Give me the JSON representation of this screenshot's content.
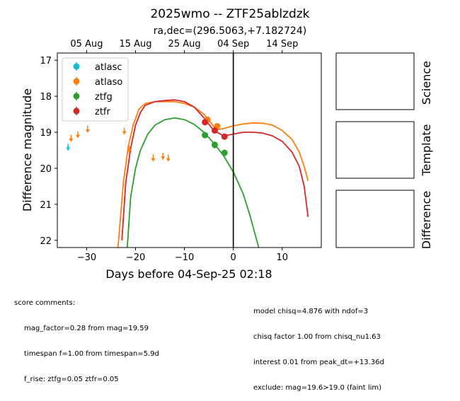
{
  "chart_data": {
    "type": "scatter",
    "title": "2025wmo -- ZTF25ablzdzk",
    "subtitle": "ra,dec=(296.5063,+7.182724)",
    "xlabel": "Days before 04-Sep-25 02:18",
    "ylabel": "Difference magnitude",
    "xlim": [
      -36,
      18
    ],
    "ylim": [
      22.2,
      16.8
    ],
    "x_ticks": [
      -30,
      -20,
      -10,
      0,
      10
    ],
    "y_ticks": [
      17,
      18,
      19,
      20,
      21,
      22
    ],
    "top_axis_ticks": [
      {
        "x": -30,
        "label": "05 Aug"
      },
      {
        "x": -20,
        "label": "15 Aug"
      },
      {
        "x": -10,
        "label": "25 Aug"
      },
      {
        "x": 0,
        "label": "04 Sep"
      },
      {
        "x": 10,
        "label": "14 Sep"
      }
    ],
    "vline_x": 0,
    "legend_position": "top-left",
    "series": [
      {
        "name": "atlasc",
        "color": "#17becf",
        "detections": [],
        "upper_limits": [
          {
            "x": -33.8,
            "y": 19.4
          }
        ]
      },
      {
        "name": "atlaso",
        "color": "#ff7f0e",
        "detections": [
          {
            "x": -5.3,
            "y": 18.65,
            "err": 0.05
          },
          {
            "x": -3.3,
            "y": 18.83,
            "err": 0.06
          }
        ],
        "upper_limits": [
          {
            "x": -33.2,
            "y": 19.15
          },
          {
            "x": -31.8,
            "y": 19.05
          },
          {
            "x": -29.8,
            "y": 18.9
          },
          {
            "x": -22.3,
            "y": 18.95
          },
          {
            "x": -21.3,
            "y": 19.45
          },
          {
            "x": -16.4,
            "y": 19.7
          },
          {
            "x": -14.4,
            "y": 19.65
          },
          {
            "x": -13.3,
            "y": 19.7
          }
        ],
        "model": [
          [
            -23.6,
            22.2
          ],
          [
            -22.5,
            20.4
          ],
          [
            -21.5,
            19.4
          ],
          [
            -20.5,
            18.8
          ],
          [
            -19.3,
            18.35
          ],
          [
            -18,
            18.2
          ],
          [
            -16,
            18.15
          ],
          [
            -14,
            18.15
          ],
          [
            -12,
            18.15
          ],
          [
            -10,
            18.2
          ],
          [
            -8,
            18.3
          ],
          [
            -6,
            18.5
          ],
          [
            -4.5,
            18.75
          ],
          [
            -3.5,
            18.93
          ],
          [
            -2,
            18.9
          ],
          [
            0,
            18.82
          ],
          [
            2,
            18.77
          ],
          [
            4,
            18.74
          ],
          [
            6,
            18.75
          ],
          [
            8,
            18.8
          ],
          [
            10,
            18.95
          ],
          [
            12,
            19.2
          ],
          [
            13.5,
            19.55
          ],
          [
            14.5,
            19.95
          ],
          [
            15.3,
            20.35
          ]
        ]
      },
      {
        "name": "ztfg",
        "color": "#2ca02c",
        "detections": [
          {
            "x": -5.8,
            "y": 19.08,
            "err": 0.08
          },
          {
            "x": -3.8,
            "y": 19.35,
            "err": 0.1
          },
          {
            "x": -1.8,
            "y": 19.57,
            "err": 0.09
          }
        ],
        "upper_limits": [],
        "model": [
          [
            -21.7,
            22.2
          ],
          [
            -21,
            20.8
          ],
          [
            -20,
            20
          ],
          [
            -19,
            19.5
          ],
          [
            -17.5,
            19.05
          ],
          [
            -16,
            18.8
          ],
          [
            -14,
            18.65
          ],
          [
            -12,
            18.6
          ],
          [
            -10,
            18.65
          ],
          [
            -8,
            18.78
          ],
          [
            -6,
            19
          ],
          [
            -4,
            19.3
          ],
          [
            -2,
            19.65
          ],
          [
            0,
            20.1
          ],
          [
            2,
            20.7
          ],
          [
            3.5,
            21.35
          ],
          [
            4.6,
            21.9
          ],
          [
            5.2,
            22.2
          ]
        ]
      },
      {
        "name": "ztfr",
        "color": "#d62728",
        "detections": [
          {
            "x": -5.8,
            "y": 18.72,
            "err": 0.06
          },
          {
            "x": -3.8,
            "y": 18.95,
            "err": 0.07
          },
          {
            "x": -1.8,
            "y": 19.12,
            "err": 0.07
          }
        ],
        "upper_limits": [],
        "model": [
          [
            -22.8,
            22.0
          ],
          [
            -22,
            20.4
          ],
          [
            -21,
            19.45
          ],
          [
            -20,
            18.8
          ],
          [
            -19,
            18.45
          ],
          [
            -18,
            18.25
          ],
          [
            -16,
            18.15
          ],
          [
            -14,
            18.12
          ],
          [
            -12,
            18.1
          ],
          [
            -10,
            18.15
          ],
          [
            -8,
            18.3
          ],
          [
            -6,
            18.6
          ],
          [
            -4,
            18.95
          ],
          [
            -2,
            19.1
          ],
          [
            0,
            19.05
          ],
          [
            2,
            19
          ],
          [
            4,
            19
          ],
          [
            6,
            19.02
          ],
          [
            8,
            19.1
          ],
          [
            10,
            19.25
          ],
          [
            12,
            19.55
          ],
          [
            13.5,
            19.95
          ],
          [
            14.5,
            20.5
          ],
          [
            15.3,
            21.35
          ]
        ]
      }
    ]
  },
  "side_panels": [
    {
      "label": "Science"
    },
    {
      "label": "Template"
    },
    {
      "label": "Difference"
    }
  ],
  "comments_left": {
    "header": "score comments:",
    "lines": [
      "mag_factor=0.28 from mag=19.59",
      "timespan f=1.00 from timespan=5.9d",
      "f_rise: ztfg=0.05 ztfr=0.05"
    ]
  },
  "comments_right": {
    "lines": [
      "model chisq=4.876 with ndof=3",
      "chisq factor 1.00 from chisq_nu1.63",
      "interest 0.01 from peak_dt=+13.36d",
      "exclude: mag=19.6>19.0 (faint lim)"
    ]
  }
}
